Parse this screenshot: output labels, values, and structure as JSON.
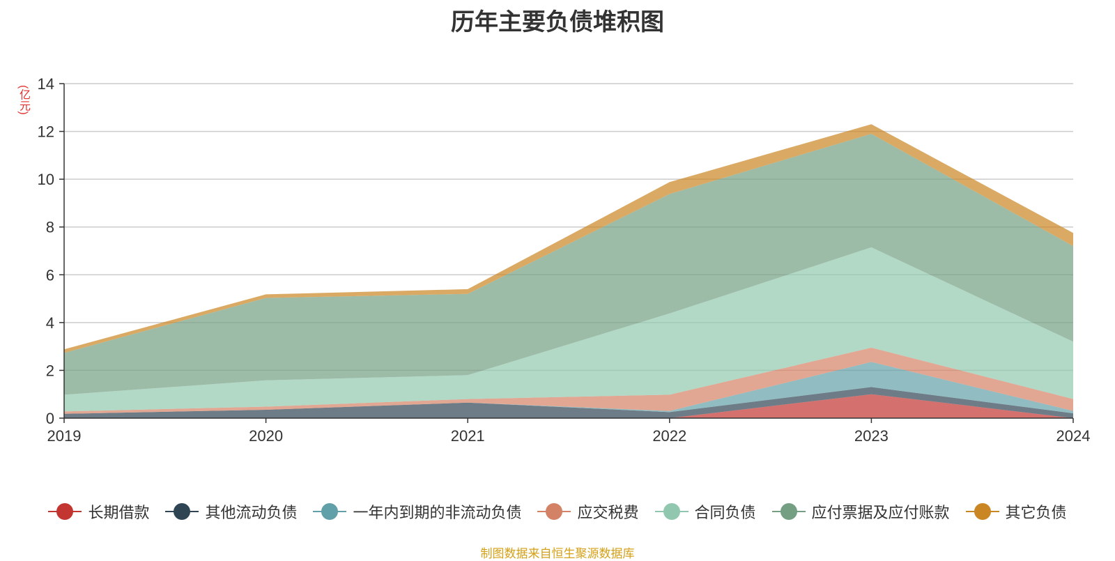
{
  "title": "历年主要负债堆积图",
  "source_note": "制图数据来自恒生聚源数据库",
  "chart_data": {
    "type": "area",
    "stacked": true,
    "title": "历年主要负债堆积图",
    "ylabel": "(亿元)",
    "xlabel": "",
    "x": [
      "2019",
      "2020",
      "2021",
      "2022",
      "2023",
      "2024"
    ],
    "ylim": [
      0,
      14
    ],
    "yticks": [
      0,
      2,
      4,
      6,
      8,
      10,
      12,
      14
    ],
    "grid": true,
    "legend_position": "bottom",
    "series": [
      {
        "name": "长期借款",
        "color": "#c23531",
        "values": [
          0,
          0,
          0,
          0,
          1.0,
          0
        ]
      },
      {
        "name": "其他流动负债",
        "color": "#2f4554",
        "values": [
          0.18,
          0.35,
          0.65,
          0.25,
          0.3,
          0.2
        ]
      },
      {
        "name": "一年内到期的非流动负债",
        "color": "#61a0a8",
        "values": [
          0,
          0,
          0,
          0.05,
          1.05,
          0.1
        ]
      },
      {
        "name": "应交税费",
        "color": "#d48265",
        "values": [
          0.1,
          0.13,
          0.15,
          0.68,
          0.6,
          0.5
        ]
      },
      {
        "name": "合同负债",
        "color": "#91c7ae",
        "values": [
          0.7,
          1.1,
          1.0,
          3.4,
          4.2,
          2.4
        ]
      },
      {
        "name": "应付票据及应付账款",
        "color": "#749f83",
        "values": [
          1.75,
          3.45,
          3.4,
          5.0,
          4.75,
          4.0
        ]
      },
      {
        "name": "其它负债",
        "color": "#ca8622",
        "values": [
          0.15,
          0.15,
          0.2,
          0.5,
          0.4,
          0.55
        ]
      }
    ]
  }
}
